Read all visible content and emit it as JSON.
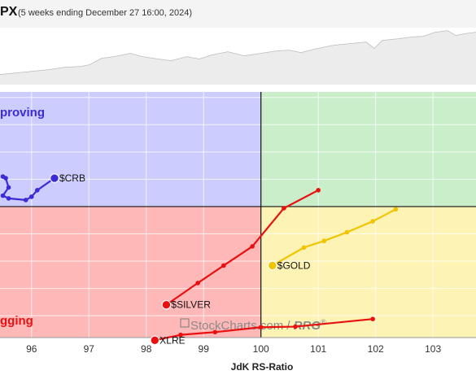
{
  "header": {
    "symbol": "PX",
    "subtitle": "(5 weeks ending December 27 16:00, 2024)"
  },
  "quadrant_labels": {
    "improving": "proving",
    "lagging": "gging"
  },
  "watermark": {
    "brand": "StockCharts.com",
    "sep": " / ",
    "rrg": "RRG",
    "reg": "®"
  },
  "colors": {
    "improving": "#ccccff",
    "leading": "#c9eec9",
    "weakening": "#fdf3b4",
    "lagging": "#ffb8b8",
    "crb": "#3b2bd6",
    "silver": "#e81010",
    "gold": "#f2c400",
    "xlre": "#e81010"
  },
  "chart_data": {
    "type": "scatter",
    "xlabel": "JdK RS-Ratio",
    "xlim": [
      95.45,
      103.75
    ],
    "ylim": [
      97.6,
      102.1
    ],
    "x_ticks": [
      96,
      97,
      98,
      99,
      100,
      101,
      102,
      103
    ],
    "center": [
      100,
      100
    ],
    "series": [
      {
        "name": "$CRB",
        "color_key": "crb",
        "points": [
          [
            95.5,
            100.55
          ],
          [
            95.55,
            100.52
          ],
          [
            95.6,
            100.35
          ],
          [
            95.5,
            100.2
          ],
          [
            95.6,
            100.15
          ],
          [
            95.9,
            100.12
          ],
          [
            96.0,
            100.18
          ],
          [
            96.1,
            100.3
          ],
          [
            96.4,
            100.52
          ]
        ]
      },
      {
        "name": "$SILVER",
        "color_key": "silver",
        "points": [
          [
            101.0,
            100.3
          ],
          [
            100.4,
            99.97
          ],
          [
            99.85,
            99.27
          ],
          [
            99.35,
            98.92
          ],
          [
            98.9,
            98.6
          ],
          [
            98.35,
            98.2
          ]
        ]
      },
      {
        "name": "$GOLD",
        "color_key": "gold",
        "points": [
          [
            102.35,
            99.95
          ],
          [
            101.95,
            99.73
          ],
          [
            101.5,
            99.53
          ],
          [
            101.1,
            99.37
          ],
          [
            100.75,
            99.25
          ],
          [
            100.2,
            98.92
          ]
        ]
      },
      {
        "name": "XLRE",
        "color_key": "xlre",
        "points": [
          [
            101.95,
            97.94
          ],
          [
            100.6,
            97.8
          ],
          [
            100.0,
            97.79
          ],
          [
            99.2,
            97.7
          ],
          [
            98.6,
            97.65
          ],
          [
            98.15,
            97.55
          ]
        ]
      }
    ]
  }
}
